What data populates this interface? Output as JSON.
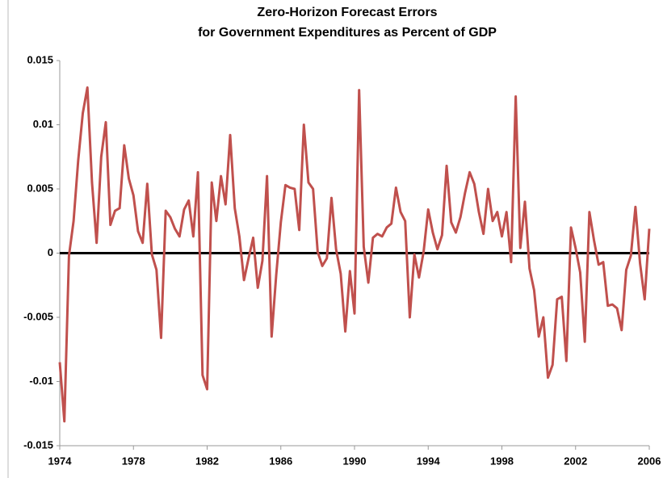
{
  "chart_data": {
    "type": "line",
    "title": "Zero-Horizon Forecast Errors",
    "subtitle": "for Government Expenditures as Percent of GDP",
    "x": [
      1974,
      1974.25,
      1974.5,
      1974.75,
      1975,
      1975.25,
      1975.5,
      1975.75,
      1976,
      1976.25,
      1976.5,
      1976.75,
      1977,
      1977.25,
      1977.5,
      1977.75,
      1978,
      1978.25,
      1978.5,
      1978.75,
      1979,
      1979.25,
      1979.5,
      1979.75,
      1980,
      1980.25,
      1980.5,
      1980.75,
      1981,
      1981.25,
      1981.5,
      1981.75,
      1982,
      1982.25,
      1982.5,
      1982.75,
      1983,
      1983.25,
      1983.5,
      1983.75,
      1984,
      1984.25,
      1984.5,
      1984.75,
      1985,
      1985.25,
      1985.5,
      1985.75,
      1986,
      1986.25,
      1986.5,
      1986.75,
      1987,
      1987.25,
      1987.5,
      1987.75,
      1988,
      1988.25,
      1988.5,
      1988.75,
      1989,
      1989.25,
      1989.5,
      1989.75,
      1990,
      1990.25,
      1990.5,
      1990.75,
      1991,
      1991.25,
      1991.5,
      1991.75,
      1992,
      1992.25,
      1992.5,
      1992.75,
      1993,
      1993.25,
      1993.5,
      1993.75,
      1994,
      1994.25,
      1994.5,
      1994.75,
      1995,
      1995.25,
      1995.5,
      1995.75,
      1996,
      1996.25,
      1996.5,
      1996.75,
      1997,
      1997.25,
      1997.5,
      1997.75,
      1998,
      1998.25,
      1998.5,
      1998.75,
      1999,
      1999.25,
      1999.5,
      1999.75,
      2000,
      2000.25,
      2000.5,
      2000.75,
      2001,
      2001.25,
      2001.5,
      2001.75,
      2002,
      2002.25,
      2002.5,
      2002.75,
      2003,
      2003.25,
      2003.5,
      2003.75,
      2004,
      2004.25,
      2004.5,
      2004.75,
      2005,
      2005.25,
      2005.5,
      2005.75,
      2006
    ],
    "values": [
      -0.0085,
      -0.0131,
      -0.0002,
      0.0025,
      0.0072,
      0.0109,
      0.0129,
      0.0055,
      0.0008,
      0.0075,
      0.0102,
      0.0022,
      0.0033,
      0.0035,
      0.0084,
      0.0058,
      0.0045,
      0.0017,
      0.0008,
      0.0054,
      -0.0001,
      -0.0013,
      -0.0066,
      0.0033,
      0.0028,
      0.0019,
      0.0013,
      0.0034,
      0.0041,
      0.0013,
      0.0063,
      -0.0095,
      -0.0106,
      0.0055,
      0.0025,
      0.006,
      0.0038,
      0.0092,
      0.0035,
      0.0013,
      -0.0021,
      -0.0004,
      0.0012,
      -0.0027,
      -0.0006,
      0.006,
      -0.0065,
      -0.0017,
      0.0024,
      0.0053,
      0.0051,
      0.005,
      0.0018,
      0.01,
      0.0055,
      0.005,
      0.0001,
      -0.001,
      -0.0004,
      0.0043,
      0.0003,
      -0.0016,
      -0.0061,
      -0.0014,
      -0.0047,
      0.0127,
      0.0005,
      -0.0023,
      0.0012,
      0.0015,
      0.0013,
      0.002,
      0.0023,
      0.0051,
      0.0032,
      0.0025,
      -0.005,
      -0.0001,
      -0.0019,
      0.0001,
      0.0034,
      0.0016,
      0.0003,
      0.0014,
      0.0068,
      0.0024,
      0.0016,
      0.0028,
      0.0047,
      0.0063,
      0.0054,
      0.0032,
      0.0015,
      0.005,
      0.0025,
      0.0032,
      0.0013,
      0.0032,
      -0.0007,
      0.0122,
      0.0004,
      0.004,
      -0.0012,
      -0.0029,
      -0.0065,
      -0.005,
      -0.0097,
      -0.0087,
      -0.0036,
      -0.0034,
      -0.0084,
      0.002,
      0.0004,
      -0.0015,
      -0.0069,
      0.0032,
      0.001,
      -0.0009,
      -0.0007,
      -0.0041,
      -0.004,
      -0.0043,
      -0.006,
      -0.0013,
      -0.0002,
      0.0036,
      -0.0008,
      -0.0036,
      0.0019
    ],
    "color": "#c0504d",
    "xlim": [
      1974,
      2006
    ],
    "xticks": [
      1974,
      1978,
      1982,
      1986,
      1990,
      1994,
      1998,
      2002,
      2006
    ],
    "ylim": [
      -0.015,
      0.015
    ],
    "yticks": [
      0.015,
      0.01,
      0.005,
      0,
      -0.005,
      -0.01,
      -0.015
    ],
    "zero_line": true
  }
}
